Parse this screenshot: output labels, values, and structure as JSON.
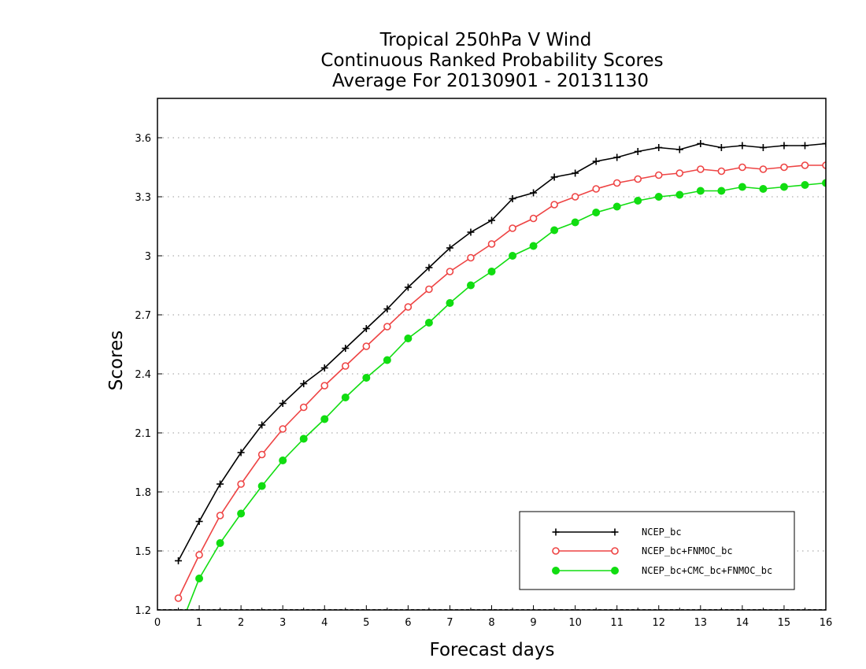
{
  "chart_data": {
    "type": "line",
    "title_lines": [
      "Tropical 250hPa V Wind",
      "Continuous Ranked Probability Scores",
      "Average For 20130901 - 20131130"
    ],
    "xlabel": "Forecast days",
    "ylabel": "Scores",
    "xlim": [
      0,
      16
    ],
    "ylim": [
      1.2,
      3.8
    ],
    "x_ticks": [
      0,
      1,
      2,
      3,
      4,
      5,
      6,
      7,
      8,
      9,
      10,
      11,
      12,
      13,
      14,
      15,
      16
    ],
    "x_tick_labels": [
      "0",
      "1",
      "2",
      "3",
      "4",
      "5",
      "6",
      "7",
      "8",
      "9",
      "10",
      "11",
      "12",
      "13",
      "14",
      "15",
      "16"
    ],
    "y_ticks": [
      1.2,
      1.5,
      1.8,
      2.1,
      2.4,
      2.7,
      3.0,
      3.3,
      3.6
    ],
    "y_tick_labels": [
      "1.2",
      "1.5",
      "1.8",
      "2.1",
      "2.4",
      "2.7",
      "3",
      "3.3",
      "3.6"
    ],
    "grid": "horizontal dotted",
    "legend_position": "bottom-right",
    "x": [
      0.5,
      1,
      1.5,
      2,
      2.5,
      3,
      3.5,
      4,
      4.5,
      5,
      5.5,
      6,
      6.5,
      7,
      7.5,
      8,
      8.5,
      9,
      9.5,
      10,
      10.5,
      11,
      11.5,
      12,
      12.5,
      13,
      13.5,
      14,
      14.5,
      15,
      15.5,
      16
    ],
    "series": [
      {
        "name": "NCEP_bc",
        "color": "#000000",
        "marker": "plus",
        "values": [
          1.45,
          1.65,
          1.84,
          2.0,
          2.14,
          2.25,
          2.35,
          2.43,
          2.53,
          2.63,
          2.73,
          2.84,
          2.94,
          3.04,
          3.12,
          3.18,
          3.29,
          3.32,
          3.4,
          3.42,
          3.48,
          3.5,
          3.53,
          3.55,
          3.54,
          3.57,
          3.55,
          3.56,
          3.55,
          3.56,
          3.56,
          3.57
        ]
      },
      {
        "name": "NCEP_bc+FNMOC_bc",
        "color": "#ee4444",
        "marker": "open-circle",
        "values": [
          1.26,
          1.48,
          1.68,
          1.84,
          1.99,
          2.12,
          2.23,
          2.34,
          2.44,
          2.54,
          2.64,
          2.74,
          2.83,
          2.92,
          2.99,
          3.06,
          3.14,
          3.19,
          3.26,
          3.3,
          3.34,
          3.37,
          3.39,
          3.41,
          3.42,
          3.44,
          3.43,
          3.45,
          3.44,
          3.45,
          3.46,
          3.46
        ]
      },
      {
        "name": "NCEP_bc+CMC_bc+FNMOC_bc",
        "color": "#11dd11",
        "marker": "filled-circle",
        "values": [
          1.09,
          1.36,
          1.54,
          1.69,
          1.83,
          1.96,
          2.07,
          2.17,
          2.28,
          2.38,
          2.47,
          2.58,
          2.66,
          2.76,
          2.85,
          2.92,
          3.0,
          3.05,
          3.13,
          3.17,
          3.22,
          3.25,
          3.28,
          3.3,
          3.31,
          3.33,
          3.33,
          3.35,
          3.34,
          3.35,
          3.36,
          3.37
        ]
      }
    ]
  }
}
